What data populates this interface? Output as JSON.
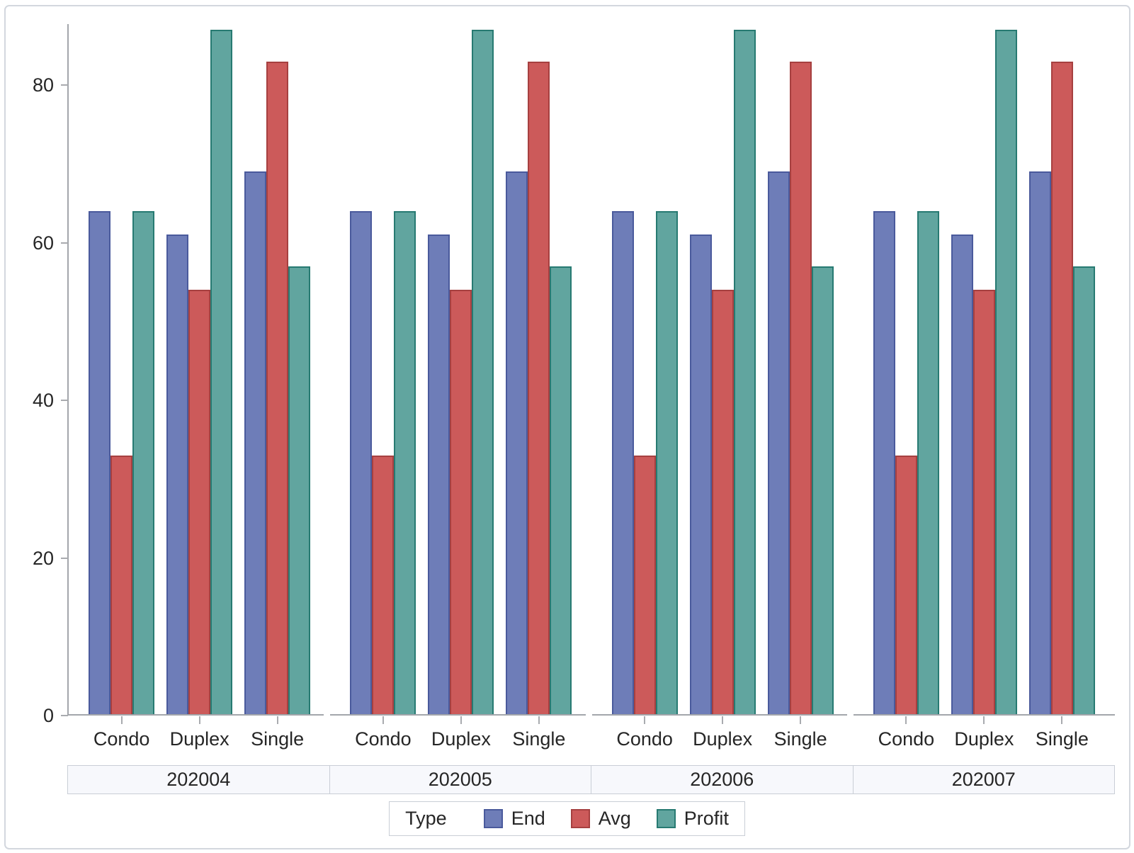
{
  "page": {
    "background": "#ffffff",
    "frame_border_color": "#d3d7de",
    "axis_color": "#a3a6ab",
    "text_color": "#262626",
    "band_fill": "#f7f8fc",
    "band_border": "#c9ced6"
  },
  "chart_data": {
    "type": "bar",
    "title": "",
    "orientation": "vertical",
    "panels": [
      "202004",
      "202005",
      "202006",
      "202007"
    ],
    "categories": [
      "Condo",
      "Duplex",
      "Single"
    ],
    "series": [
      {
        "name": "End",
        "fill": "#6E7DB8",
        "stroke": "#4A5A9C",
        "values_by_panel": [
          [
            64,
            61,
            69
          ],
          [
            64,
            61,
            69
          ],
          [
            64,
            61,
            69
          ],
          [
            64,
            61,
            69
          ]
        ]
      },
      {
        "name": "Avg",
        "fill": "#CC5A5A",
        "stroke": "#A64040",
        "values_by_panel": [
          [
            33,
            54,
            83
          ],
          [
            33,
            54,
            83
          ],
          [
            33,
            54,
            83
          ],
          [
            33,
            54,
            83
          ]
        ]
      },
      {
        "name": "Profit",
        "fill": "#61A59F",
        "stroke": "#277A72",
        "values_by_panel": [
          [
            64,
            87,
            57
          ],
          [
            64,
            87,
            57
          ],
          [
            64,
            87,
            57
          ],
          [
            64,
            87,
            57
          ]
        ]
      }
    ],
    "y_axis": {
      "ticks": [
        0,
        20,
        40,
        60,
        80
      ],
      "range": [
        0,
        87.7
      ],
      "gridlines": false
    },
    "legend_position": "bottom"
  },
  "legend": {
    "title": "Type",
    "entries": [
      {
        "label": "End",
        "fill": "#6E7DB8",
        "stroke": "#4A5A9C"
      },
      {
        "label": "Avg",
        "fill": "#CC5A5A",
        "stroke": "#A64040"
      },
      {
        "label": "Profit",
        "fill": "#61A59F",
        "stroke": "#277A72"
      }
    ]
  }
}
